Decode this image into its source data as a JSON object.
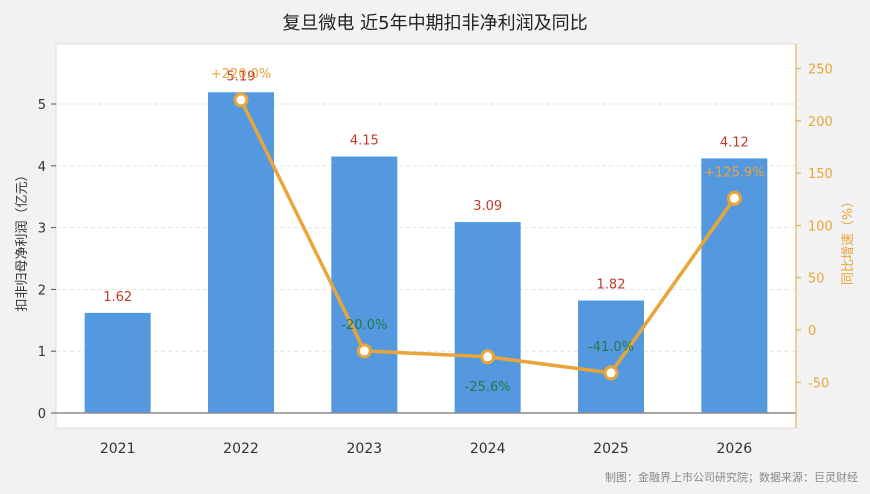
{
  "chart_data": {
    "type": "bar",
    "title": "复旦微电 近5年中期扣非净利润及同比",
    "categories": [
      "2021",
      "2022",
      "2023",
      "2024",
      "2025",
      "2026"
    ],
    "series": [
      {
        "values": [
          1.62,
          5.19,
          4.15,
          3.09,
          1.82,
          4.12
        ],
        "value_labels": [
          "1.62",
          "5.19",
          "4.15",
          "3.09",
          "1.82",
          "4.12"
        ],
        "color": "#5499e0"
      },
      {
        "type": "line",
        "values": [
          null,
          220.0,
          -20.0,
          -25.6,
          -41.0,
          125.9
        ],
        "value_labels": [
          "",
          "+220.0%",
          "-20.0%",
          "-25.6%",
          "-41.0%",
          "+125.9%"
        ],
        "color": "#e8a53a"
      }
    ],
    "ylabel": "扣非归母净利润（亿元）",
    "ylabel_right": "同比增速（%）",
    "ylim": [
      0,
      6
    ],
    "ylim_right": [
      -75,
      275
    ],
    "yticks": [
      "0",
      "1",
      "2",
      "3",
      "4",
      "5"
    ],
    "yticks_right": [
      "-50",
      "0",
      "50",
      "100",
      "150",
      "200",
      "250"
    ],
    "grid": true,
    "colors": {
      "positive_label": "#e8a53a",
      "negative_label": "#1e7b45",
      "bar_label": "#c0392b"
    }
  },
  "source_note": "制图：金融界上市公司研究院；数据来源：巨灵财经"
}
